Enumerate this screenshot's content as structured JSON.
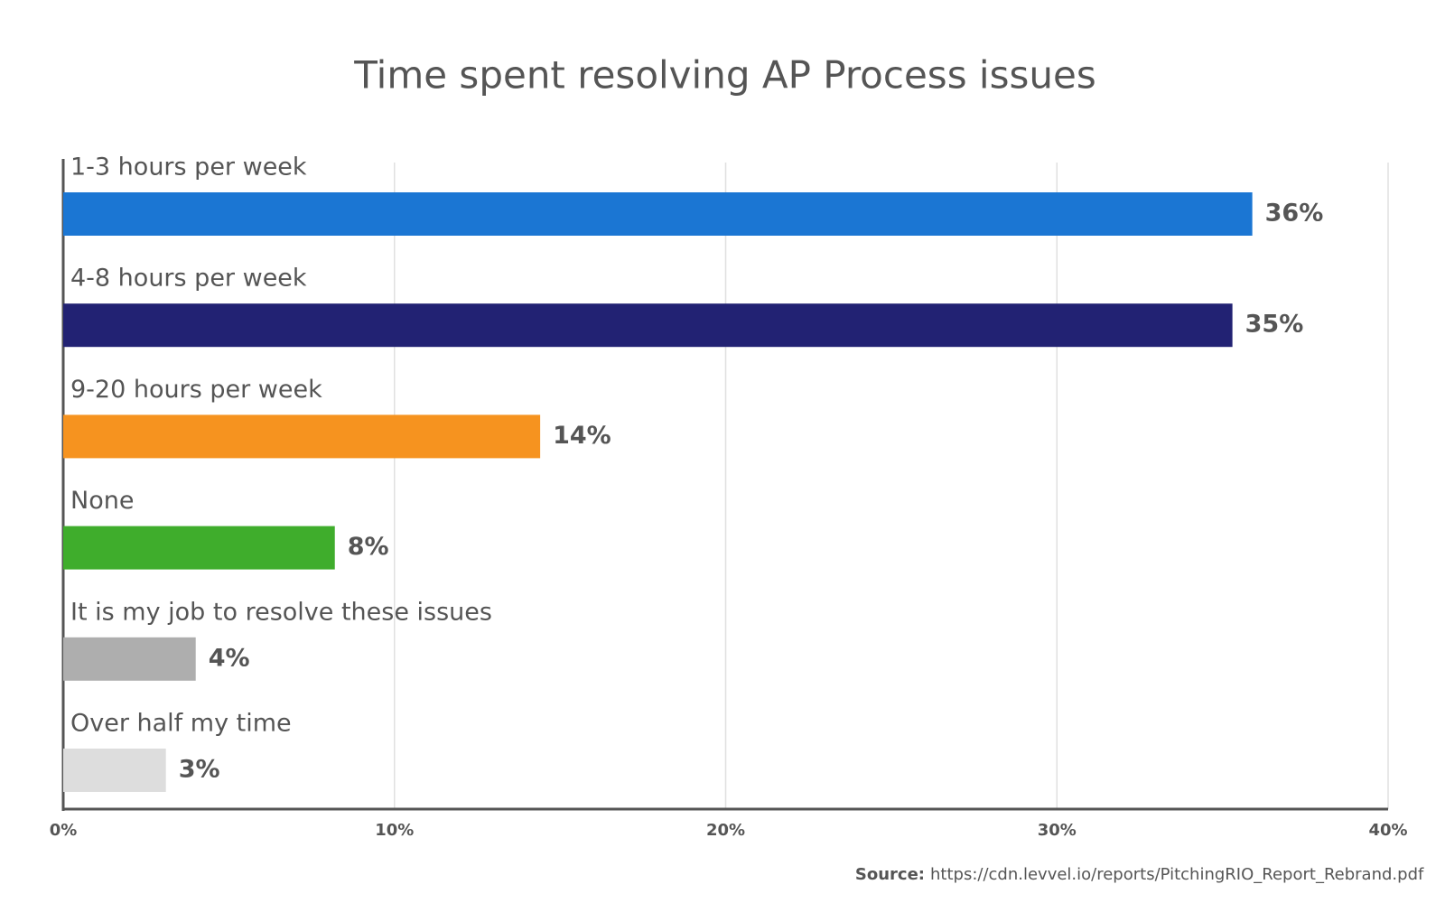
{
  "chart_data": {
    "type": "bar",
    "orientation": "horizontal",
    "title": "Time spent resolving AP Process issues",
    "categories": [
      "1-3 hours per week",
      "4-8 hours per week",
      "9-20 hours per week",
      "None",
      "It is my job to resolve these issues",
      "Over half my time"
    ],
    "values": [
      35.9,
      35.3,
      14.4,
      8.2,
      4.0,
      3.1
    ],
    "value_labels": [
      "36%",
      "35%",
      "14%",
      "8%",
      "4%",
      "3%"
    ],
    "colors": [
      "#1b76d3",
      "#222273",
      "#f6931f",
      "#3fad2c",
      "#aeaeae",
      "#dddddd"
    ],
    "xlim": [
      0,
      40
    ],
    "xticks": [
      {
        "value": 0,
        "label": "0%"
      },
      {
        "value": 10,
        "label": "10%"
      },
      {
        "value": 20,
        "label": "20%"
      },
      {
        "value": 30,
        "label": "30%"
      },
      {
        "value": 40,
        "label": "40%"
      }
    ],
    "grid": true,
    "source_label": "Source:",
    "source": "https://cdn.levvel.io/reports/PitchingRIO_Report_Rebrand.pdf"
  }
}
